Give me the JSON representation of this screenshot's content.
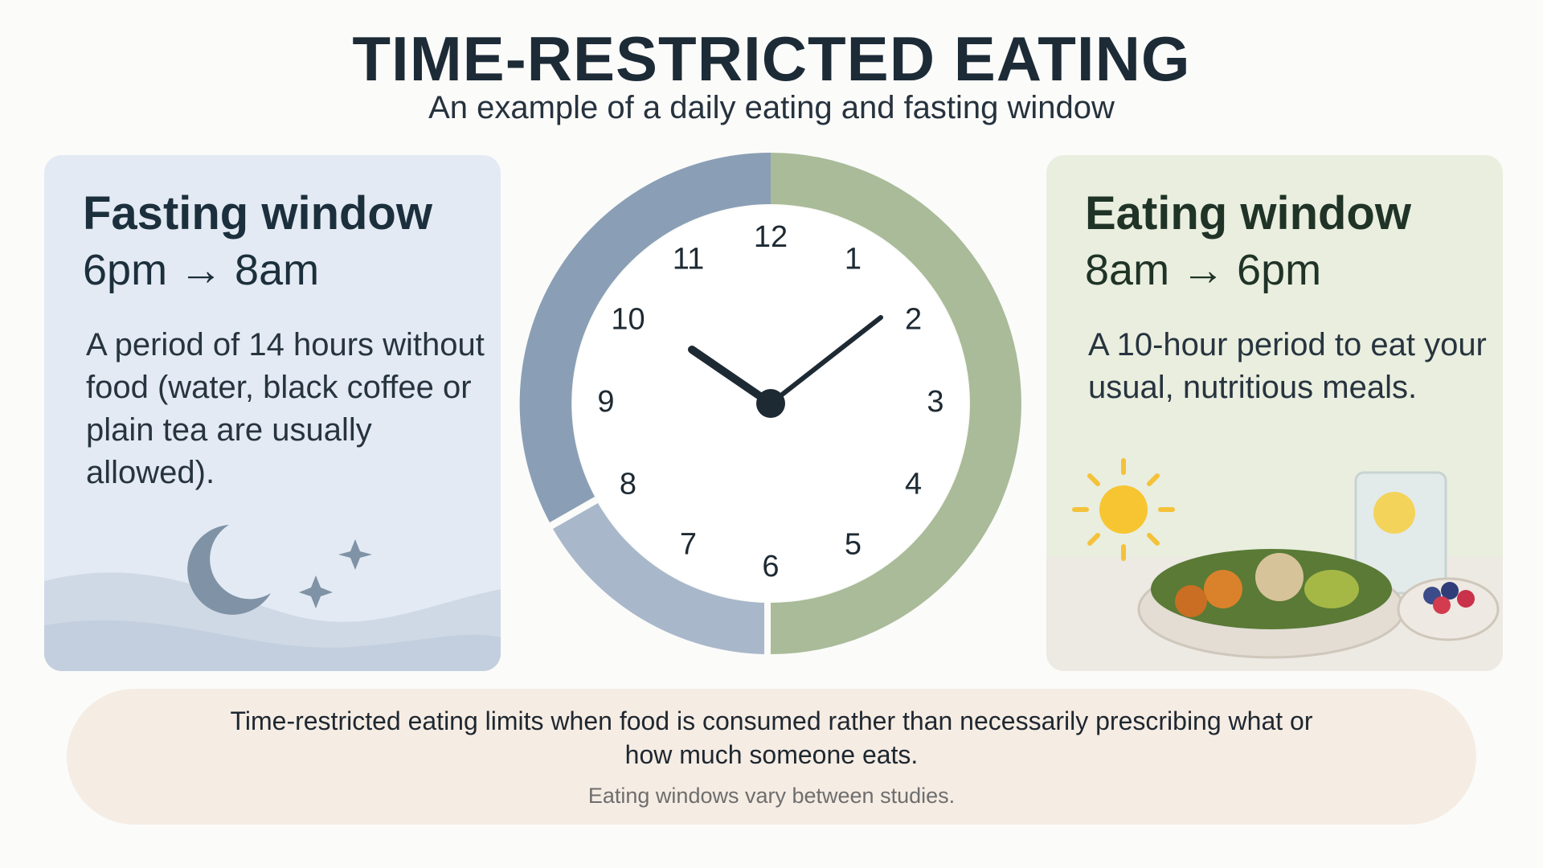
{
  "header": {
    "title": "TIME-RESTRICTED EATING",
    "subtitle": "An example of a daily eating and fasting window"
  },
  "fasting": {
    "title": "Fasting window",
    "time": "6pm → 8am",
    "description": "A period of 14 hours without food (water, black coffee or plain tea are usually allowed)."
  },
  "eating": {
    "title": "Eating window",
    "time": "8am → 6pm",
    "description": "A 10-hour period to eat your usual, nutritious meals."
  },
  "clock": {
    "numerals": [
      "12",
      "1",
      "2",
      "3",
      "4",
      "5",
      "6",
      "7",
      "8",
      "9",
      "10",
      "11"
    ]
  },
  "footer": {
    "note": "Time-restricted eating limits when food is consumed rather than necessarily prescribing what or how much someone eats.",
    "caption": "Eating windows vary between studies."
  }
}
